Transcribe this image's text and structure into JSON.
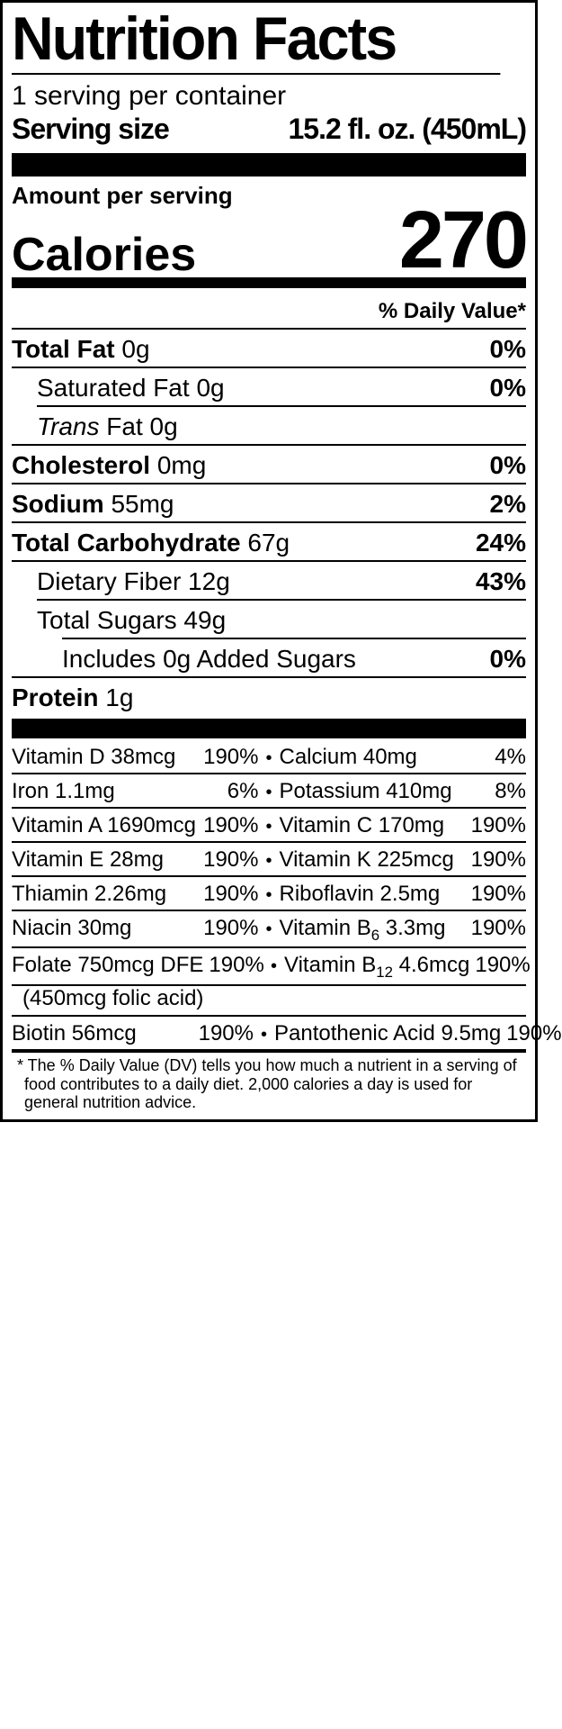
{
  "title": "Nutrition Facts",
  "servings_per_container": "1 serving per container",
  "serving_size_label": "Serving size",
  "serving_size_value": "15.2 fl. oz. (450mL)",
  "amount_per_serving": "Amount per serving",
  "calories_label": "Calories",
  "calories_value": "270",
  "dv_header": "% Daily Value*",
  "nutrients": {
    "total_fat": {
      "label": "Total Fat",
      "amount": "0g",
      "dv": "0%"
    },
    "sat_fat": {
      "label": "Saturated Fat",
      "amount": "0g",
      "dv": "0%"
    },
    "trans_fat": {
      "label_prefix": "Trans",
      "label_suffix": " Fat",
      "amount": "0g"
    },
    "cholesterol": {
      "label": "Cholesterol",
      "amount": "0mg",
      "dv": "0%"
    },
    "sodium": {
      "label": "Sodium",
      "amount": "55mg",
      "dv": "2%"
    },
    "total_carb": {
      "label": "Total Carbohydrate",
      "amount": "67g",
      "dv": "24%"
    },
    "fiber": {
      "label": "Dietary Fiber",
      "amount": "12g",
      "dv": "43%"
    },
    "total_sugars": {
      "label": "Total Sugars",
      "amount": "49g"
    },
    "added_sugars": {
      "text": "Includes 0g Added Sugars",
      "dv": "0%"
    },
    "protein": {
      "label": "Protein",
      "amount": "1g"
    }
  },
  "vitamins": [
    {
      "left_name": "Vitamin D 38mcg",
      "left_dv": "190%",
      "right_name": "Calcium 40mg",
      "right_dv": "4%"
    },
    {
      "left_name": "Iron 1.1mg",
      "left_dv": "6%",
      "right_name": "Potassium 410mg",
      "right_dv": "8%"
    },
    {
      "left_name": "Vitamin A 1690mcg",
      "left_dv": "190%",
      "right_name": "Vitamin C 170mg",
      "right_dv": "190%"
    },
    {
      "left_name": "Vitamin E 28mg",
      "left_dv": "190%",
      "right_name": "Vitamin K 225mcg",
      "right_dv": "190%"
    },
    {
      "left_name": "Thiamin 2.26mg",
      "left_dv": "190%",
      "right_name": "Riboflavin 2.5mg",
      "right_dv": "190%"
    },
    {
      "left_name": "Niacin 30mg",
      "left_dv": "190%",
      "right_name_pre": "Vitamin B",
      "right_name_sub": "6",
      "right_name_post": " 3.3mg",
      "right_dv": "190%"
    },
    {
      "left_name": "Folate 750mcg DFE",
      "left_dv": "190%",
      "right_name_pre": "Vitamin B",
      "right_name_sub": "12",
      "right_name_post": " 4.6mcg",
      "right_dv": "190%",
      "continuation": "(450mcg folic acid)"
    },
    {
      "left_name": "Biotin  56mcg",
      "left_dv": "190%",
      "right_name": "Pantothenic Acid 9.5mg",
      "right_dv": "190%"
    }
  ],
  "footnote": "*  The % Daily Value (DV) tells you how much a nutrient in a serving of food contributes to a daily diet. 2,000 calories a day is used for general nutrition advice."
}
